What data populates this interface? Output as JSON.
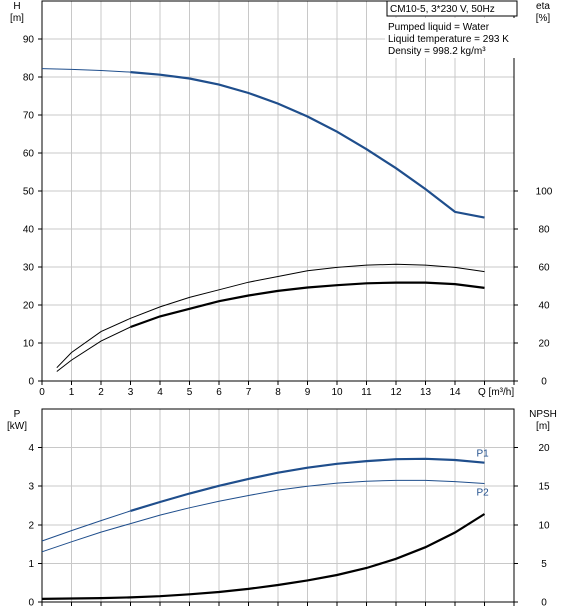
{
  "header": {
    "title": "CM10-5, 3*230 V, 50Hz",
    "info_lines": [
      "Pumped liquid = Water",
      "Liquid temperature = 293 K",
      "Density = 998.2 kg/m³"
    ]
  },
  "colors": {
    "blue": "#1f4e8c",
    "black": "#000000",
    "grid": "#c8c8c8"
  },
  "chart_data": [
    {
      "type": "line",
      "panel": "top",
      "title": "",
      "xlabel": "Q [m³/h]",
      "x_ticks": [
        0,
        1,
        2,
        3,
        4,
        5,
        6,
        7,
        8,
        9,
        10,
        11,
        12,
        13,
        14
      ],
      "xlim": [
        0,
        16
      ],
      "left_axis": {
        "label_top": "H",
        "label_unit": "[m]",
        "ylim": [
          0,
          100
        ],
        "ticks": [
          0,
          10,
          20,
          30,
          40,
          50,
          60,
          70,
          80,
          90
        ]
      },
      "right_axis": {
        "label_top": "eta",
        "label_unit": "[%]",
        "ylim": [
          0,
          200
        ],
        "ticks": [
          0,
          20,
          40,
          60,
          80,
          100
        ]
      },
      "grid": true,
      "series": [
        {
          "id": "H",
          "axis": "left",
          "color": "#1f4e8c",
          "x": [
            0,
            1,
            2,
            3,
            4,
            5,
            6,
            7,
            8,
            9,
            10,
            11,
            12,
            13,
            14,
            15
          ],
          "y": [
            82.2,
            82.0,
            81.7,
            81.3,
            80.6,
            79.6,
            78.0,
            75.8,
            73.0,
            69.6,
            65.6,
            61.0,
            56.0,
            50.5,
            44.5,
            43.0
          ],
          "bold_from_x": 3
        },
        {
          "id": "eta_pump",
          "axis": "right",
          "color": "#000000",
          "x": [
            0.5,
            1,
            2,
            3,
            4,
            5,
            6,
            7,
            8,
            9,
            10,
            11,
            12,
            13,
            14,
            15
          ],
          "y": [
            7,
            15,
            26,
            33,
            39,
            44,
            48,
            52,
            55,
            58,
            59.8,
            61,
            61.4,
            61,
            59.8,
            57.6
          ],
          "bold_from_x": 99
        },
        {
          "id": "eta_total",
          "axis": "right",
          "color": "#000000",
          "x": [
            0.5,
            1,
            2,
            3,
            4,
            5,
            6,
            7,
            8,
            9,
            10,
            11,
            12,
            13,
            14,
            15
          ],
          "y": [
            5,
            11,
            21,
            28.4,
            34,
            38,
            42,
            45,
            47.4,
            49.2,
            50.4,
            51.4,
            51.8,
            51.8,
            51,
            49
          ],
          "bold_from_x": 3
        }
      ]
    },
    {
      "type": "line",
      "panel": "bottom",
      "title": "",
      "xlabel": "",
      "xlim": [
        0,
        16
      ],
      "left_axis": {
        "label_top": "P",
        "label_unit": "[kW]",
        "ylim": [
          0,
          5
        ],
        "ticks": [
          0,
          1,
          2,
          3,
          4
        ]
      },
      "right_axis": {
        "label_top": "NPSH",
        "label_unit": "[m]",
        "ylim": [
          0,
          25
        ],
        "ticks": [
          0,
          5,
          10,
          15,
          20
        ]
      },
      "grid": true,
      "series": [
        {
          "id": "P1",
          "name": "P1",
          "axis": "left",
          "color": "#1f4e8c",
          "x": [
            0,
            1,
            2,
            3,
            4,
            5,
            6,
            7,
            8,
            9,
            10,
            11,
            12,
            13,
            14,
            15
          ],
          "y": [
            1.58,
            1.85,
            2.11,
            2.36,
            2.59,
            2.81,
            3.01,
            3.19,
            3.35,
            3.48,
            3.58,
            3.65,
            3.7,
            3.71,
            3.68,
            3.61
          ],
          "bold_from_x": 3
        },
        {
          "id": "P2",
          "name": "P2",
          "axis": "left",
          "color": "#1f4e8c",
          "x": [
            0,
            1,
            2,
            3,
            4,
            5,
            6,
            7,
            8,
            9,
            10,
            11,
            12,
            13,
            14,
            15
          ],
          "y": [
            1.3,
            1.56,
            1.81,
            2.03,
            2.25,
            2.44,
            2.61,
            2.76,
            2.9,
            3.0,
            3.08,
            3.13,
            3.15,
            3.15,
            3.12,
            3.07
          ],
          "bold_from_x": 99
        },
        {
          "id": "NPSH",
          "axis": "right",
          "color": "#000000",
          "x": [
            0,
            1,
            2,
            3,
            4,
            5,
            6,
            7,
            8,
            9,
            10,
            11,
            12,
            13,
            14,
            15
          ],
          "y": [
            0.4,
            0.45,
            0.5,
            0.6,
            0.75,
            1.0,
            1.3,
            1.7,
            2.2,
            2.8,
            3.5,
            4.4,
            5.6,
            7.1,
            9.0,
            11.4
          ],
          "bold_from_x": 0
        }
      ]
    }
  ]
}
